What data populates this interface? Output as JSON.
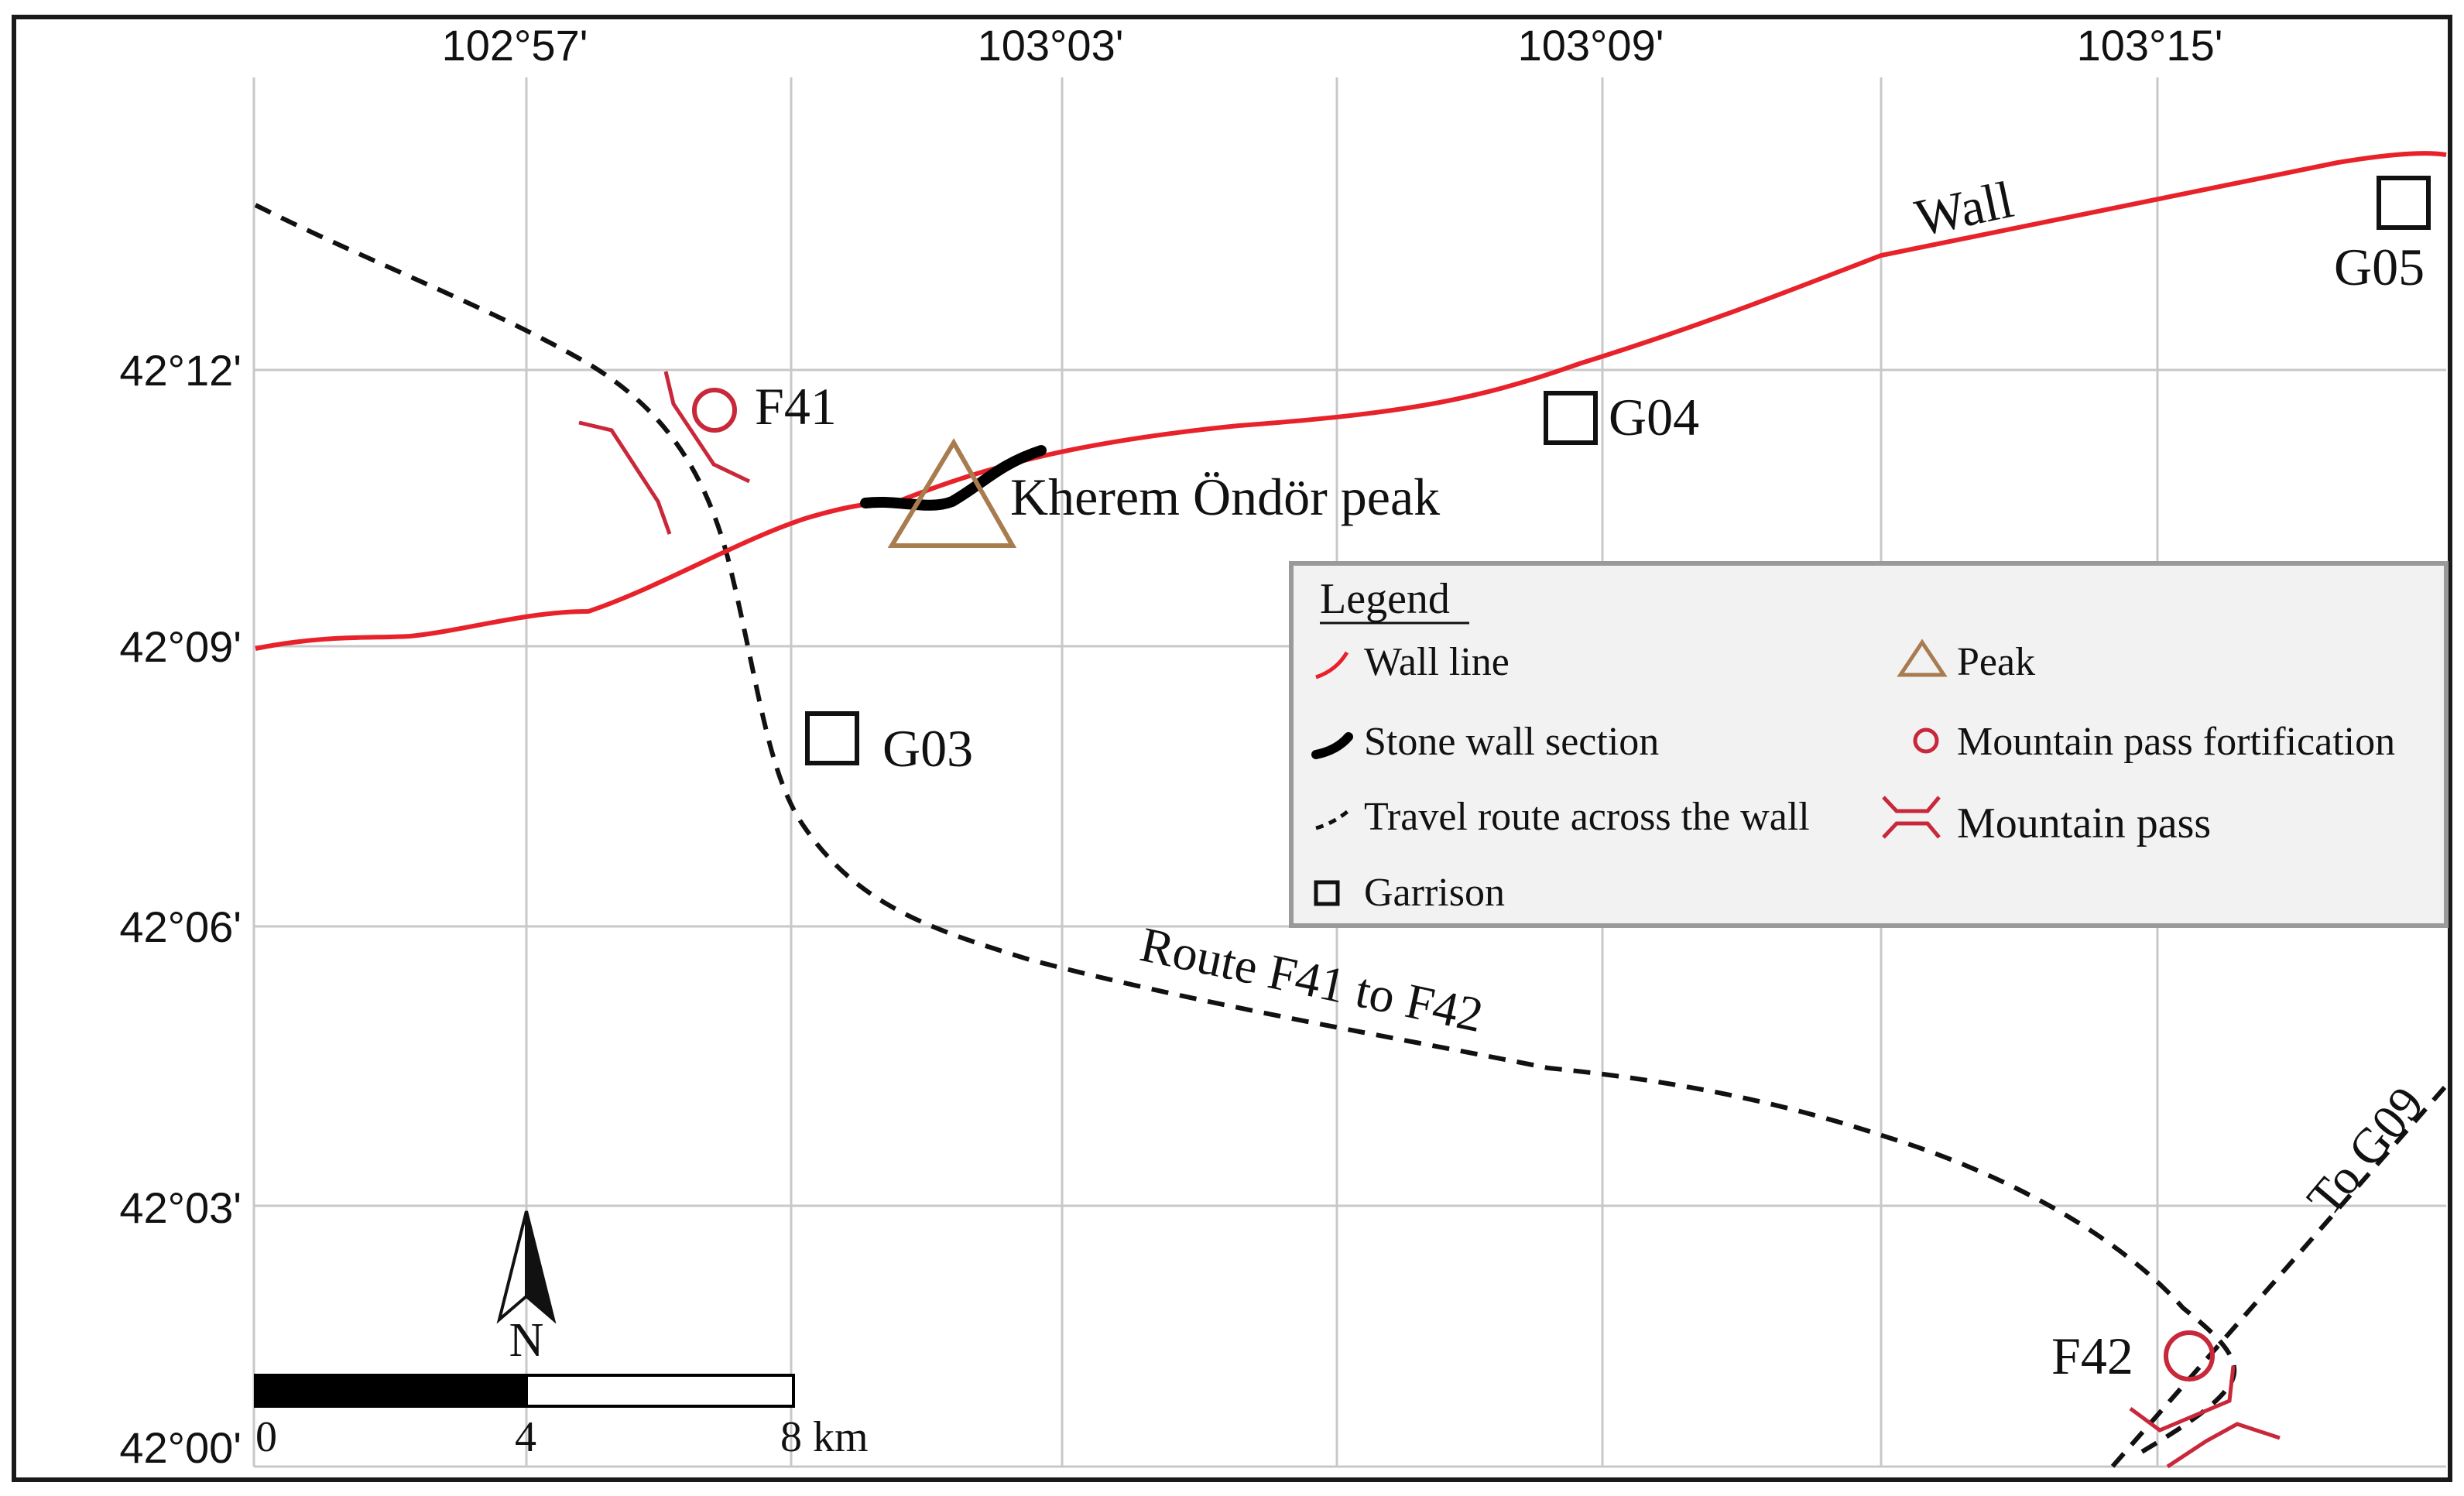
{
  "map": {
    "longitude_ticks": [
      "102°57'",
      "103°03'",
      "103°09'",
      "103°15'"
    ],
    "latitude_ticks": [
      "42°12'",
      "42°09'",
      "42°06'",
      "42°03'",
      "42°00'"
    ],
    "labels": {
      "wall": "Wall",
      "peak": "Kherem Öndör peak",
      "route": "Route F41 to F42",
      "to_g09": "To G09",
      "north": "N"
    },
    "garrisons": [
      "G03",
      "G04",
      "G05"
    ],
    "fortifications": [
      "F41",
      "F42"
    ],
    "scale_bar": {
      "labels": [
        "0",
        "4",
        "8 km"
      ],
      "length_km": 8
    },
    "legend": {
      "title": "Legend",
      "items": [
        {
          "label": "Wall line",
          "symbol": "wall-line"
        },
        {
          "label": "Peak",
          "symbol": "peak"
        },
        {
          "label": "Stone wall section",
          "symbol": "stone-wall"
        },
        {
          "label": "Mountain pass fortification",
          "symbol": "fortification"
        },
        {
          "label": "Travel route across the wall",
          "symbol": "travel-route"
        },
        {
          "label": "Mountain pass",
          "symbol": "mountain-pass"
        },
        {
          "label": "Garrison",
          "symbol": "garrison"
        }
      ]
    },
    "colors": {
      "wall": "#e8222a",
      "stone_wall": "#000000",
      "route": "#111111",
      "peak": "#a87c4f",
      "fortification": "#c8283a",
      "grid": "#c8c8c8",
      "legend_bg": "#f2f2f3",
      "legend_border": "#9a9a9a"
    }
  }
}
